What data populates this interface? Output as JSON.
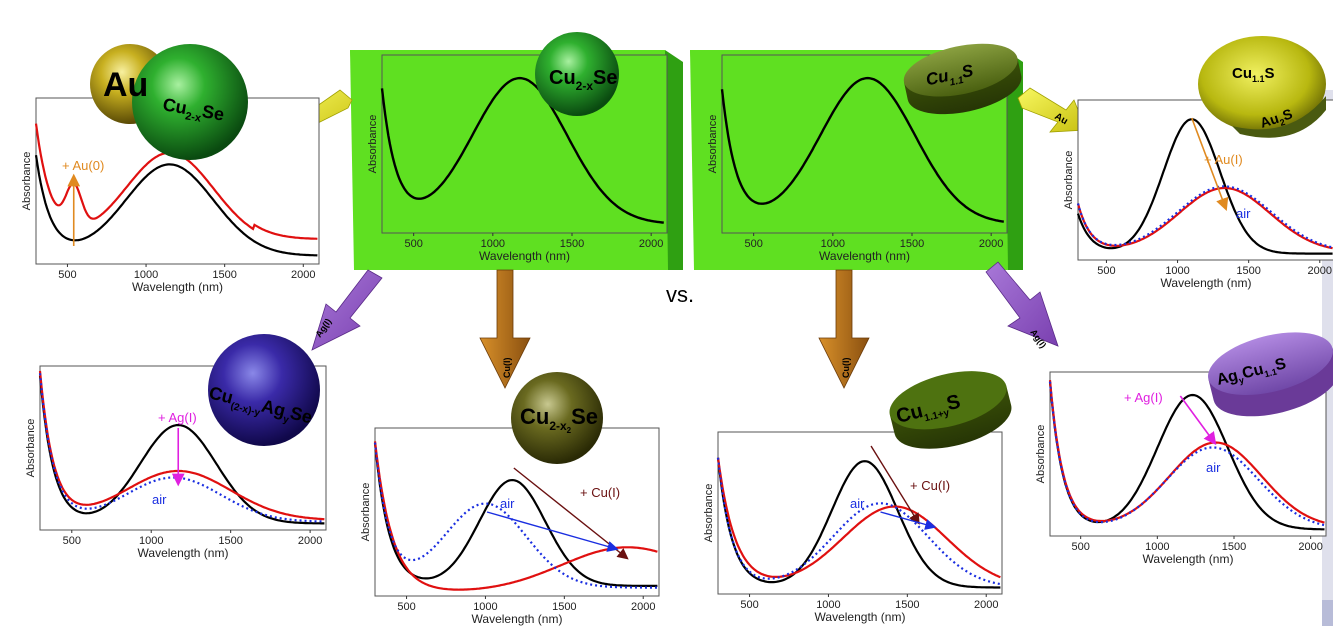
{
  "vs_label": "vs.",
  "colors": {
    "black_curve": "#000000",
    "red_curve": "#e01010",
    "blue_dotted": "#1a2ee0",
    "au_arrow": "#e08a20",
    "ag_arrow": "#e020e0",
    "cu_arrow": "#6a1010",
    "air_arrow": "#1a2ee0",
    "green_box": "#5fe021",
    "purple_arrow": "#8a50b8",
    "brown_arrow": "#b06a20",
    "yellow_arrow": "#e8e820"
  },
  "central_panels": [
    {
      "particle": "Cu2-xSe",
      "particle_base": "Cu",
      "particle_sub": "2-x",
      "particle_tail": "Se",
      "ylabel": "Absorbance",
      "xlabel": "Wavelength (nm)",
      "ticks": [
        "500",
        "1000",
        "1500",
        "2000"
      ]
    },
    {
      "particle": "Cu1.1S",
      "particle_base": "Cu",
      "particle_sub": "1.1",
      "particle_tail": "S",
      "ylabel": "Absorbance",
      "xlabel": "Wavelength (nm)",
      "ticks": [
        "500",
        "1000",
        "1500",
        "2000"
      ]
    }
  ],
  "side_arrows": {
    "au_left": "Au",
    "au_right": "Au",
    "ag_left": "Ag(I)",
    "ag_right": "Ag(I)",
    "cu_left": "Cu(I)",
    "cu_right": "Cu(I)"
  },
  "outer_panels": {
    "top_left": {
      "particle_au": "Au",
      "particle_rest": "Cu",
      "particle_sub": "2-x",
      "particle_tail": "Se",
      "annotation": "+ Au(0)",
      "ylabel": "Absorbance",
      "xlabel": "Wavelength (nm)",
      "ticks": [
        "500",
        "1000",
        "1500",
        "2000"
      ]
    },
    "top_right": {
      "particle_top": "Cu",
      "particle_top_sub": "1.1",
      "particle_top_tail": "S",
      "particle_bottom": "Au",
      "particle_bottom_sub": "2",
      "particle_bottom_tail": "S",
      "annotation": "+ Au(I)",
      "air": "air",
      "ylabel": "Absorbance",
      "xlabel": "Wavelength (nm)",
      "ticks": [
        "500",
        "1000",
        "1500",
        "2000"
      ]
    },
    "bottom_left": {
      "particle_base": "Cu",
      "particle_sub": "(2-x)-y",
      "particle_mid": "Ag",
      "particle_mid_sub": "y",
      "particle_tail": "Se",
      "annotation": "+ Ag(I)",
      "air": "air",
      "ylabel": "Absorbance",
      "xlabel": "Wavelength (nm)",
      "ticks": [
        "500",
        "1000",
        "1500",
        "2000"
      ]
    },
    "bottom_mid_left": {
      "particle_base": "Cu",
      "particle_sub": "2-x",
      "particle_sub2": "2",
      "particle_tail": "Se",
      "annotation": "+ Cu(I)",
      "air": "air",
      "ylabel": "Absorbance",
      "xlabel": "Wavelength (nm)",
      "ticks": [
        "500",
        "1000",
        "1500",
        "2000"
      ]
    },
    "bottom_mid_right": {
      "particle_base": "Cu",
      "particle_sub": "1.1+y",
      "particle_tail": "S",
      "annotation": "+ Cu(I)",
      "air": "air",
      "ylabel": "Absorbance",
      "xlabel": "Wavelength (nm)",
      "ticks": [
        "500",
        "1000",
        "1500",
        "2000"
      ]
    },
    "bottom_right": {
      "particle_base": "Ag",
      "particle_sub": "y",
      "particle_mid": "Cu",
      "particle_mid_sub": "1.1",
      "particle_tail": "S",
      "annotation": "+ Ag(I)",
      "air": "air",
      "ylabel": "Absorbance",
      "xlabel": "Wavelength (nm)",
      "ticks": [
        "500",
        "1000",
        "1500",
        "2000"
      ]
    }
  }
}
